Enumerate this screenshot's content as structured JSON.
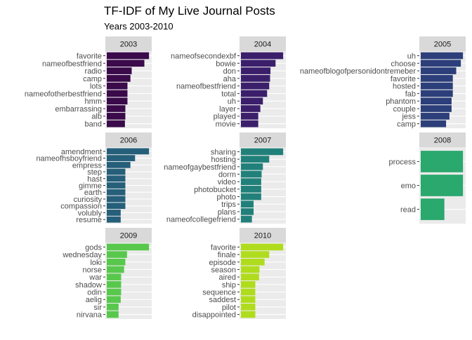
{
  "chart_data": {
    "type": "bar",
    "orientation": "horizontal",
    "title": "TF-IDF of My Live Journal Posts",
    "subtitle": "Years 2003-2010",
    "xlabel": "",
    "ylabel": "",
    "xlim": [
      0,
      1.03
    ],
    "value_note": "relative bar length (longest bar = 1)",
    "grid": true,
    "facets": [
      {
        "name": "2003",
        "color": "#3a0a4a",
        "categories": [
          "favorite",
          "nameofbestfriend",
          "radio",
          "camp",
          "lots",
          "nameofotherbestfriend",
          "hmm",
          "embarrassing",
          "alb",
          "band"
        ],
        "values": [
          1.0,
          0.89,
          0.59,
          0.56,
          0.49,
          0.49,
          0.49,
          0.44,
          0.44,
          0.43
        ]
      },
      {
        "name": "2004",
        "color": "#3b1f6b",
        "categories": [
          "nameofsecondexbf",
          "bowie",
          "don",
          "aha",
          "nameofbestfriend",
          "total",
          "uh",
          "layer",
          "played",
          "movie"
        ],
        "values": [
          1.0,
          0.82,
          0.7,
          0.69,
          0.67,
          0.62,
          0.52,
          0.46,
          0.41,
          0.41
        ]
      },
      {
        "name": "2005",
        "color": "#2c3f7a",
        "categories": [
          "uh",
          "choose",
          "nameofblogofpersonidontremeber",
          "favorite",
          "hosted",
          "fab",
          "phantom",
          "couple",
          "jess",
          "camp"
        ],
        "values": [
          1.0,
          0.95,
          0.84,
          0.76,
          0.76,
          0.76,
          0.73,
          0.73,
          0.68,
          0.6
        ]
      },
      {
        "name": "2006",
        "color": "#255f7a",
        "categories": [
          "amendment",
          "nameofhsboyfriend",
          "empress",
          "step",
          "hast",
          "gimme",
          "earth",
          "curiosity",
          "compassion",
          "volubly",
          "resume"
        ],
        "values": [
          1.0,
          0.67,
          0.56,
          0.44,
          0.44,
          0.44,
          0.44,
          0.44,
          0.44,
          0.33,
          0.33
        ]
      },
      {
        "name": "2007",
        "color": "#21817a",
        "categories": [
          "sharing",
          "hosting",
          "nameofgaybestfriend",
          "dorm",
          "video",
          "photobucket",
          "photo",
          "trips",
          "plans",
          "nameofcollegefriend"
        ],
        "values": [
          1.0,
          0.67,
          0.52,
          0.49,
          0.48,
          0.48,
          0.48,
          0.3,
          0.3,
          0.26
        ]
      },
      {
        "name": "2008",
        "color": "#2aa86d",
        "categories": [
          "process",
          "emo",
          "read"
        ],
        "values": [
          1.0,
          1.0,
          0.56
        ]
      },
      {
        "name": "2009",
        "color": "#58c84c",
        "categories": [
          "gods",
          "wednesday",
          "loki",
          "norse",
          "war",
          "shadow",
          "odin",
          "aelig",
          "sir",
          "nirvana"
        ],
        "values": [
          1.0,
          0.48,
          0.44,
          0.41,
          0.34,
          0.34,
          0.34,
          0.33,
          0.28,
          0.28
        ]
      },
      {
        "name": "2010",
        "color": "#b0dc1e",
        "categories": [
          "favorite",
          "finale",
          "episode",
          "season",
          "aired",
          "ship",
          "sequence",
          "saddest",
          "pilot",
          "disappointed"
        ],
        "values": [
          1.0,
          0.67,
          0.56,
          0.44,
          0.43,
          0.34,
          0.34,
          0.34,
          0.34,
          0.34
        ]
      }
    ]
  }
}
